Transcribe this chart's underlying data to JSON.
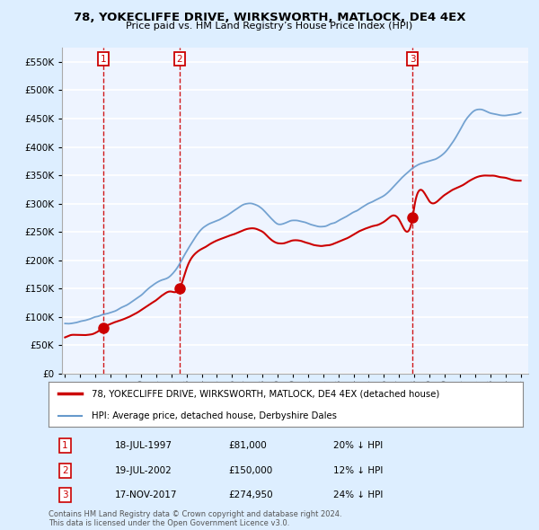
{
  "title": "78, YOKECLIFFE DRIVE, WIRKSWORTH, MATLOCK, DE4 4EX",
  "subtitle": "Price paid vs. HM Land Registry’s House Price Index (HPI)",
  "ytick_values": [
    0,
    50000,
    100000,
    150000,
    200000,
    250000,
    300000,
    350000,
    400000,
    450000,
    500000,
    550000
  ],
  "ylim": [
    0,
    575000
  ],
  "xlim_start": 1994.8,
  "xlim_end": 2025.5,
  "sale_dates": [
    1997.54,
    2002.54,
    2017.88
  ],
  "sale_prices": [
    81000,
    150000,
    274950
  ],
  "sale_labels": [
    "1",
    "2",
    "3"
  ],
  "legend_line1": "78, YOKECLIFFE DRIVE, WIRKSWORTH, MATLOCK, DE4 4EX (detached house)",
  "legend_line2": "HPI: Average price, detached house, Derbyshire Dales",
  "table_rows": [
    [
      "1",
      "18-JUL-1997",
      "£81,000",
      "20% ↓ HPI"
    ],
    [
      "2",
      "19-JUL-2002",
      "£150,000",
      "12% ↓ HPI"
    ],
    [
      "3",
      "17-NOV-2017",
      "£274,950",
      "24% ↓ HPI"
    ]
  ],
  "footer": "Contains HM Land Registry data © Crown copyright and database right 2024.\nThis data is licensed under the Open Government Licence v3.0.",
  "red_color": "#cc0000",
  "blue_color": "#6699cc",
  "bg_color": "#ddeeff",
  "plot_bg": "#eef4ff",
  "grid_color": "#ffffff",
  "hpi_years": [
    1995,
    1996,
    1997,
    1998,
    1999,
    2000,
    2001,
    2002,
    2003,
    2004,
    2005,
    2006,
    2007,
    2008,
    2009,
    2010,
    2011,
    2012,
    2013,
    2014,
    2015,
    2016,
    2017,
    2018,
    2019,
    2020,
    2021,
    2022,
    2023,
    2024,
    2025
  ],
  "hpi_values": [
    88000,
    92000,
    100000,
    108000,
    120000,
    138000,
    160000,
    175000,
    215000,
    255000,
    270000,
    285000,
    300000,
    290000,
    265000,
    270000,
    265000,
    260000,
    270000,
    285000,
    300000,
    315000,
    340000,
    365000,
    375000,
    390000,
    430000,
    465000,
    460000,
    455000,
    460000
  ],
  "prop_years": [
    1995,
    1996,
    1997,
    1997.54,
    1998,
    1999,
    2000,
    2001,
    2002,
    2002.54,
    2003,
    2004,
    2005,
    2006,
    2007,
    2008,
    2009,
    2010,
    2011,
    2012,
    2013,
    2014,
    2015,
    2016,
    2017,
    2017.88,
    2018,
    2019,
    2020,
    2021,
    2022,
    2023,
    2024,
    2025
  ],
  "prop_values": [
    65000,
    68000,
    72000,
    81000,
    88000,
    98000,
    112000,
    130000,
    145000,
    150000,
    185000,
    220000,
    235000,
    245000,
    255000,
    250000,
    230000,
    235000,
    230000,
    225000,
    232000,
    245000,
    258000,
    268000,
    272000,
    274950,
    295000,
    305000,
    315000,
    330000,
    345000,
    350000,
    345000,
    340000
  ]
}
